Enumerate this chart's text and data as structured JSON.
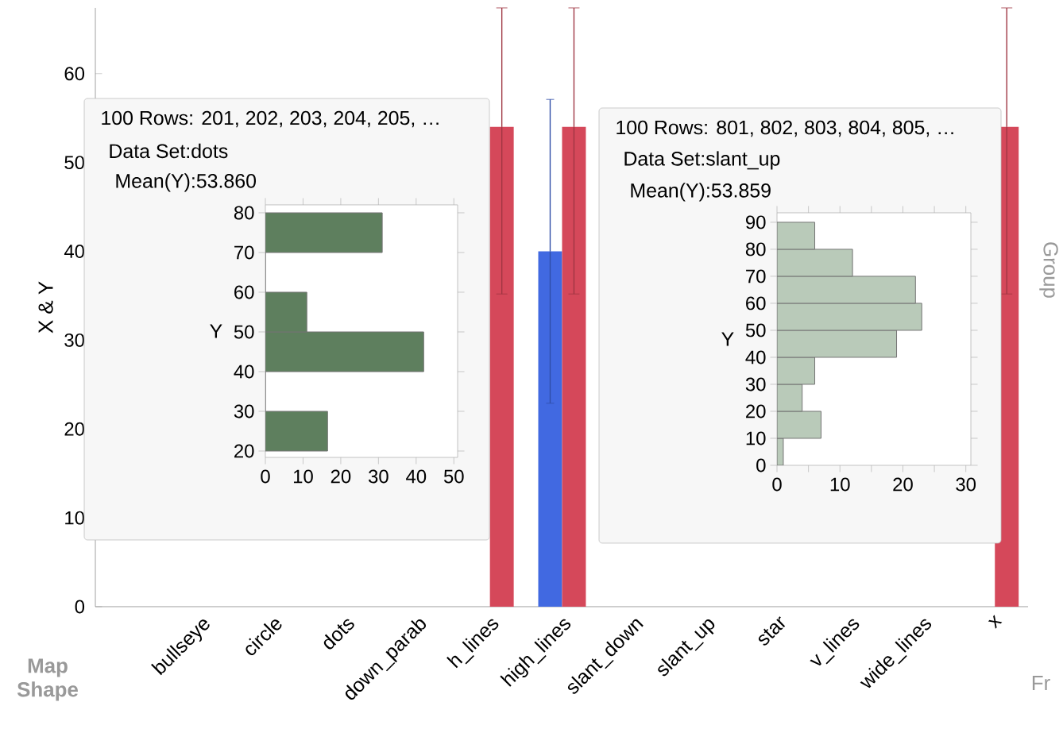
{
  "chart_data": [
    {
      "type": "bar",
      "ylabel": "X & Y",
      "categories": [
        null,
        "bullseye",
        "circle",
        "dots",
        "down_parab",
        "h_lines",
        "high_lines",
        "slant_down",
        "slant_up",
        "star",
        "v_lines",
        "wide_lines",
        "x"
      ],
      "series": [
        {
          "color": "#4169e1",
          "values": [
            null,
            null,
            null,
            null,
            null,
            null,
            40,
            null,
            null,
            null,
            null,
            null,
            null
          ],
          "errors": [
            null,
            null,
            null,
            null,
            null,
            null,
            17.1,
            null,
            null,
            null,
            null,
            null,
            null
          ]
        },
        {
          "color": "#d5485a",
          "values": [
            null,
            null,
            null,
            null,
            null,
            54,
            54,
            null,
            null,
            null,
            null,
            null,
            54
          ],
          "errors": [
            null,
            null,
            null,
            null,
            null,
            [
              35.2,
              67.4
            ],
            [
              35.2,
              67.4
            ],
            null,
            null,
            null,
            null,
            null,
            [
              35.2,
              67.4
            ]
          ]
        }
      ],
      "ylim": [
        0,
        67.4
      ],
      "yticks": [
        0,
        10,
        20,
        30,
        40,
        50,
        60
      ],
      "annotations": [
        "Map Shape",
        "Group",
        "Fr"
      ]
    },
    {
      "type": "histogram",
      "orientation": "horizontal",
      "title": "100 Rows: 201, 202, 203, 204, 205, …",
      "annotations": [
        "Data Set:dots",
        "Mean(Y):53.860"
      ],
      "ylabel": "Y",
      "bins": [
        20,
        30,
        40,
        50,
        60,
        70,
        80
      ],
      "values": [
        16.5,
        0,
        42,
        11,
        0,
        31
      ],
      "color": "#5e7f5e",
      "xlim": [
        0,
        51
      ],
      "xticks": [
        0,
        10,
        20,
        30,
        40,
        50
      ],
      "ylim": [
        18.4,
        82
      ],
      "yticks": [
        20,
        30,
        40,
        50,
        60,
        70,
        80
      ]
    },
    {
      "type": "histogram",
      "orientation": "horizontal",
      "title": "100 Rows: 801, 802, 803, 804, 805, …",
      "annotations": [
        "Data Set:slant_up",
        "Mean(Y):53.859"
      ],
      "ylabel": "Y",
      "bins": [
        0,
        10,
        20,
        30,
        40,
        50,
        60,
        70,
        80,
        90
      ],
      "values": [
        1,
        7,
        4,
        6,
        19,
        23,
        22,
        12,
        6
      ],
      "color": "#b9cab9",
      "xlim": [
        0,
        30.8
      ],
      "xticks": [
        0,
        {
          "value": 5,
          "label": null
        },
        10,
        {
          "value": 15,
          "label": null
        },
        20,
        {
          "value": 25,
          "label": null
        },
        30
      ],
      "ylim": [
        0,
        93.5
      ],
      "yticks": [
        0,
        10,
        20,
        30,
        40,
        50,
        60,
        70,
        80,
        90
      ]
    }
  ]
}
